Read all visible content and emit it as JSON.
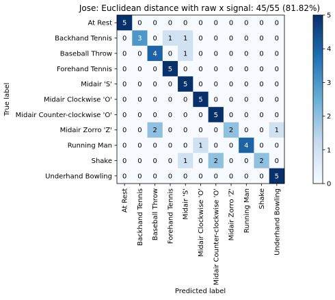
{
  "chart_data": {
    "type": "heatmap",
    "title": "Jose: Euclidean distance with raw x signal: 45/55 (81.82%)",
    "xlabel": "Predicted label",
    "ylabel": "True label",
    "labels": [
      "At Rest",
      "Backhand Tennis",
      "Baseball Throw",
      "Forehand Tennis",
      "Midair 'S'",
      "Midair Clockwise 'O'",
      "Midair Counter-clockwise 'O'",
      "Midair Zorro 'Z'",
      "Running Man",
      "Shake",
      "Underhand Bowling"
    ],
    "matrix": [
      [
        5,
        0,
        0,
        0,
        0,
        0,
        0,
        0,
        0,
        0,
        0
      ],
      [
        0,
        3,
        0,
        1,
        1,
        0,
        0,
        0,
        0,
        0,
        0
      ],
      [
        0,
        0,
        4,
        0,
        1,
        0,
        0,
        0,
        0,
        0,
        0
      ],
      [
        0,
        0,
        0,
        5,
        0,
        0,
        0,
        0,
        0,
        0,
        0
      ],
      [
        0,
        0,
        0,
        0,
        5,
        0,
        0,
        0,
        0,
        0,
        0
      ],
      [
        0,
        0,
        0,
        0,
        0,
        5,
        0,
        0,
        0,
        0,
        0
      ],
      [
        0,
        0,
        0,
        0,
        0,
        0,
        5,
        0,
        0,
        0,
        0
      ],
      [
        0,
        0,
        2,
        0,
        0,
        0,
        0,
        2,
        0,
        0,
        1
      ],
      [
        0,
        0,
        0,
        0,
        0,
        1,
        0,
        0,
        4,
        0,
        0
      ],
      [
        0,
        0,
        0,
        0,
        1,
        0,
        2,
        0,
        0,
        2,
        0
      ],
      [
        0,
        0,
        0,
        0,
        0,
        0,
        0,
        0,
        0,
        0,
        5
      ]
    ],
    "colorbar": {
      "min": 0,
      "max": 5,
      "ticks": [
        "0",
        "1",
        "2",
        "3",
        "4",
        "5"
      ]
    },
    "colormap": [
      "#f7fbff",
      "#c6dbef",
      "#6baed6",
      "#2171b5",
      "#08306b"
    ]
  }
}
